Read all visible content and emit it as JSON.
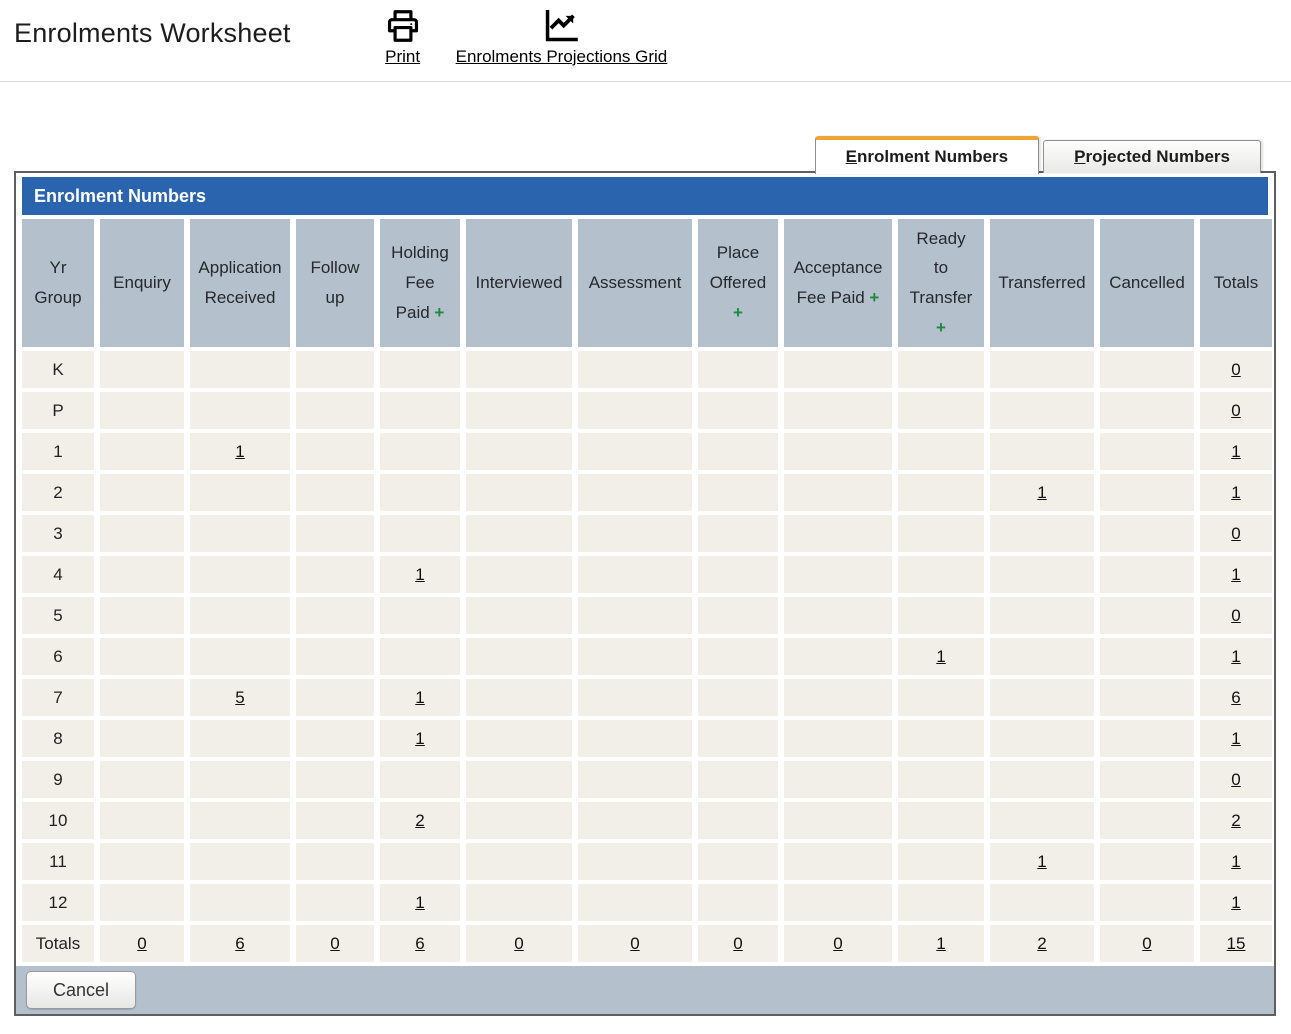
{
  "page": {
    "title": "Enrolments Worksheet"
  },
  "toolbar": {
    "print_label": "Print",
    "projections_label": "Enrolments Projections Grid"
  },
  "icons": {
    "print": "printer-icon",
    "projections": "line-chart-trending-up-icon",
    "column_add": "green-plus-add-icon"
  },
  "tabs": {
    "enrolment": {
      "accesskey": "E",
      "rest": "nrolment Numbers",
      "active": true
    },
    "projected": {
      "accesskey": "P",
      "rest": "rojected Numbers",
      "active": false
    }
  },
  "panel": {
    "title": "Enrolment Numbers"
  },
  "table": {
    "columns": [
      {
        "id": "yr-group",
        "lines": [
          "Yr",
          "Group"
        ],
        "plus": null
      },
      {
        "id": "enquiry",
        "lines": [
          "Enquiry"
        ],
        "plus": null
      },
      {
        "id": "application-received",
        "lines": [
          "Application",
          "Received"
        ],
        "plus": null
      },
      {
        "id": "follow-up",
        "lines": [
          "Follow",
          "up"
        ],
        "plus": null
      },
      {
        "id": "holding-fee-paid",
        "lines": [
          "Holding",
          "Fee",
          "Paid"
        ],
        "plus": "inline"
      },
      {
        "id": "interviewed",
        "lines": [
          "Interviewed"
        ],
        "plus": null
      },
      {
        "id": "assessment",
        "lines": [
          "Assessment"
        ],
        "plus": null
      },
      {
        "id": "place-offered",
        "lines": [
          "Place",
          "Offered"
        ],
        "plus": "below"
      },
      {
        "id": "acceptance-fee-paid",
        "lines": [
          "Acceptance",
          "Fee Paid"
        ],
        "plus": "inline"
      },
      {
        "id": "ready-to-transfer",
        "lines": [
          "Ready",
          "to",
          "Transfer"
        ],
        "plus": "below"
      },
      {
        "id": "transferred",
        "lines": [
          "Transferred"
        ],
        "plus": null
      },
      {
        "id": "cancelled",
        "lines": [
          "Cancelled"
        ],
        "plus": null
      },
      {
        "id": "totals",
        "lines": [
          "Totals"
        ],
        "plus": null
      }
    ],
    "rows": [
      {
        "label": "K",
        "values": [
          "",
          "",
          "",
          "",
          "",
          "",
          "",
          "",
          "",
          "",
          ""
        ],
        "total": "0"
      },
      {
        "label": "P",
        "values": [
          "",
          "",
          "",
          "",
          "",
          "",
          "",
          "",
          "",
          "",
          ""
        ],
        "total": "0"
      },
      {
        "label": "1",
        "values": [
          "",
          "1",
          "",
          "",
          "",
          "",
          "",
          "",
          "",
          "",
          ""
        ],
        "total": "1"
      },
      {
        "label": "2",
        "values": [
          "",
          "",
          "",
          "",
          "",
          "",
          "",
          "",
          "",
          "1",
          ""
        ],
        "total": "1"
      },
      {
        "label": "3",
        "values": [
          "",
          "",
          "",
          "",
          "",
          "",
          "",
          "",
          "",
          "",
          ""
        ],
        "total": "0"
      },
      {
        "label": "4",
        "values": [
          "",
          "",
          "",
          "1",
          "",
          "",
          "",
          "",
          "",
          "",
          ""
        ],
        "total": "1"
      },
      {
        "label": "5",
        "values": [
          "",
          "",
          "",
          "",
          "",
          "",
          "",
          "",
          "",
          "",
          ""
        ],
        "total": "0"
      },
      {
        "label": "6",
        "values": [
          "",
          "",
          "",
          "",
          "",
          "",
          "",
          "",
          "1",
          "",
          ""
        ],
        "total": "1"
      },
      {
        "label": "7",
        "values": [
          "",
          "5",
          "",
          "1",
          "",
          "",
          "",
          "",
          "",
          "",
          ""
        ],
        "total": "6"
      },
      {
        "label": "8",
        "values": [
          "",
          "",
          "",
          "1",
          "",
          "",
          "",
          "",
          "",
          "",
          ""
        ],
        "total": "1"
      },
      {
        "label": "9",
        "values": [
          "",
          "",
          "",
          "",
          "",
          "",
          "",
          "",
          "",
          "",
          ""
        ],
        "total": "0"
      },
      {
        "label": "10",
        "values": [
          "",
          "",
          "",
          "2",
          "",
          "",
          "",
          "",
          "",
          "",
          ""
        ],
        "total": "2"
      },
      {
        "label": "11",
        "values": [
          "",
          "",
          "",
          "",
          "",
          "",
          "",
          "",
          "",
          "1",
          ""
        ],
        "total": "1"
      },
      {
        "label": "12",
        "values": [
          "",
          "",
          "",
          "1",
          "",
          "",
          "",
          "",
          "",
          "",
          ""
        ],
        "total": "1"
      }
    ],
    "totals_row": {
      "label": "Totals",
      "values": [
        "0",
        "6",
        "0",
        "6",
        "0",
        "0",
        "0",
        "0",
        "1",
        "2",
        "0"
      ],
      "total": "15"
    }
  },
  "footer": {
    "cancel_label": "Cancel"
  },
  "colors": {
    "brand_blue": "#2a64af",
    "panel_gray": "#b4c1cd",
    "cell_beige": "#f2efe8",
    "tab_accent_orange": "#f0a431",
    "plus_green": "#1e8a3e",
    "border_dark": "#5f5f5f",
    "link_color": "#111111"
  }
}
